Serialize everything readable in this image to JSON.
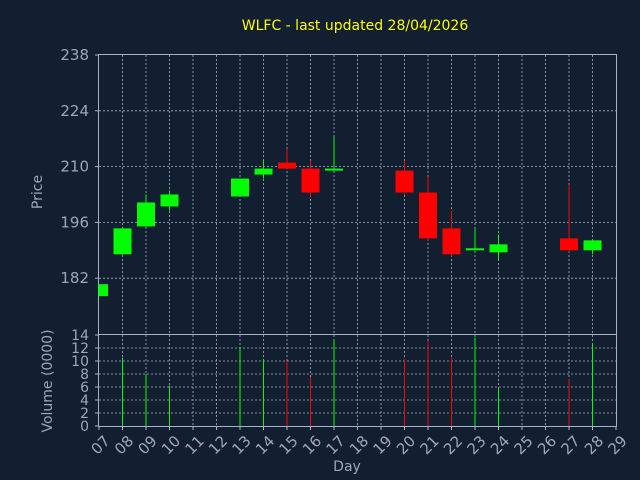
{
  "chart_data": {
    "type": "candlestick",
    "title": "WLFC - last updated 28/04/2026",
    "xlabel": "Day",
    "ylabel_price": "Price",
    "ylabel_volume": "Volume (0000)",
    "x_ticks": [
      "07",
      "08",
      "09",
      "10",
      "11",
      "12",
      "13",
      "14",
      "15",
      "16",
      "17",
      "18",
      "19",
      "20",
      "21",
      "22",
      "23",
      "24",
      "25",
      "26",
      "27",
      "28",
      "29"
    ],
    "price_ylim": [
      168,
      238
    ],
    "price_ticks": [
      "182",
      "196",
      "210",
      "224",
      "238"
    ],
    "volume_ylim": [
      0,
      14
    ],
    "volume_ticks": [
      "0",
      "2",
      "4",
      "6",
      "8",
      "10",
      "12",
      "14"
    ],
    "colors": {
      "background": "#111f30",
      "up": "#00ff00",
      "down": "#ff0000",
      "title": "#ffff00",
      "text": "#9aa8ba",
      "grid": "#a8b4c4"
    },
    "grid": true,
    "candles": [
      {
        "day": "07",
        "open": 177.5,
        "high": 180.5,
        "low": 177.5,
        "close": 180.5,
        "volume": 0
      },
      {
        "day": "08",
        "open": 188,
        "high": 194.5,
        "low": 188,
        "close": 194.5,
        "volume": 10.5
      },
      {
        "day": "09",
        "open": 195,
        "high": 203,
        "low": 194.5,
        "close": 201,
        "volume": 8
      },
      {
        "day": "10",
        "open": 200,
        "high": 204,
        "low": 199,
        "close": 203,
        "volume": 6.2
      },
      {
        "day": "13",
        "open": 202.5,
        "high": 207,
        "low": 202.5,
        "close": 207,
        "volume": 12
      },
      {
        "day": "14",
        "open": 208,
        "high": 211.5,
        "low": 207,
        "close": 209.5,
        "volume": 10.3
      },
      {
        "day": "15",
        "open": 211,
        "high": 214.5,
        "low": 209.5,
        "close": 209.5,
        "volume": 10
      },
      {
        "day": "16",
        "open": 209.5,
        "high": 211.5,
        "low": 202.5,
        "close": 203.5,
        "volume": 7.5
      },
      {
        "day": "17",
        "open": 209.5,
        "high": 217.5,
        "low": 209,
        "close": 209.5,
        "volume": 13.3
      },
      {
        "day": "20",
        "open": 209,
        "high": 211.5,
        "low": 203,
        "close": 203.5,
        "volume": 10.3
      },
      {
        "day": "21",
        "open": 203.5,
        "high": 207.5,
        "low": 191.5,
        "close": 192,
        "volume": 13
      },
      {
        "day": "22",
        "open": 194.5,
        "high": 199,
        "low": 187.5,
        "close": 188,
        "volume": 10.5
      },
      {
        "day": "23",
        "open": 189,
        "high": 194.5,
        "low": 189,
        "close": 189.5,
        "volume": 13.6
      },
      {
        "day": "24",
        "open": 188.5,
        "high": 193,
        "low": 186.5,
        "close": 190.5,
        "volume": 5.7
      },
      {
        "day": "27",
        "open": 192,
        "high": 205.5,
        "low": 188.5,
        "close": 189,
        "volume": 7.2
      },
      {
        "day": "28",
        "open": 189,
        "high": 191.5,
        "low": 188,
        "close": 191.5,
        "volume": 12.7
      }
    ]
  }
}
